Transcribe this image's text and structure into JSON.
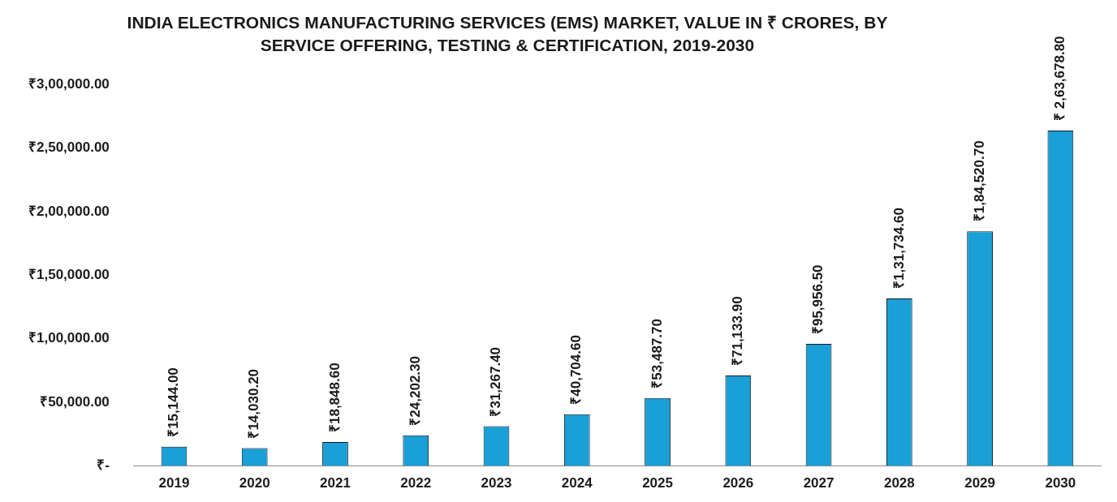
{
  "chart_data": {
    "type": "bar",
    "title": "INDIA ELECTRONICS MANUFACTURING SERVICES (EMS) MARKET, VALUE IN ₹ CRORES, BY SERVICE OFFERING, TESTING & CERTIFICATION, 2019-2030",
    "categories": [
      "2019",
      "2020",
      "2021",
      "2022",
      "2023",
      "2024",
      "2025",
      "2026",
      "2027",
      "2028",
      "2029",
      "2030"
    ],
    "values": [
      15144.0,
      14030.2,
      18848.6,
      24202.3,
      31267.4,
      40704.6,
      53487.7,
      71133.9,
      95956.5,
      131734.6,
      184520.7,
      263678.8
    ],
    "value_labels": [
      "₹15,144.00",
      "₹14,030.20",
      "₹18,848.60",
      "₹24,202.30",
      "₹31,267.40",
      "₹40,704.60",
      "₹53,487.70",
      "₹71,133.90",
      "₹95,956.50",
      "₹1,31,734.60",
      "₹1,84,520.70",
      "₹ 2,63,678.80"
    ],
    "color": "#1a9fd6",
    "ylim": [
      0,
      300000
    ],
    "yticks": [
      {
        "value": 0,
        "label": "₹-"
      },
      {
        "value": 50000,
        "label": "₹50,000.00"
      },
      {
        "value": 100000,
        "label": "₹1,00,000.00"
      },
      {
        "value": 150000,
        "label": "₹1,50,000.00"
      },
      {
        "value": 200000,
        "label": "₹2,00,000.00"
      },
      {
        "value": 250000,
        "label": "₹2,50,000.00"
      },
      {
        "value": 300000,
        "label": "₹3,00,000.00"
      }
    ],
    "grid": false
  }
}
